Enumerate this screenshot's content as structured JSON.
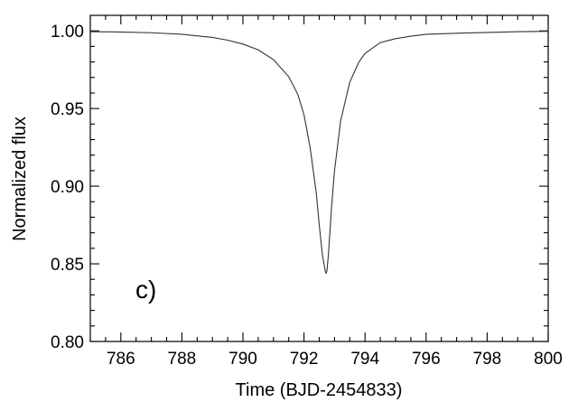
{
  "chart_data": {
    "type": "line",
    "panel_label": "c)",
    "xlabel": "Time (BJD-2454833)",
    "ylabel": "Normalized flux",
    "xlim": [
      785,
      800
    ],
    "ylim": [
      0.8,
      1.01
    ],
    "x_ticks": [
      786,
      788,
      790,
      792,
      794,
      796,
      798,
      800
    ],
    "x_tick_labels": [
      "786",
      "788",
      "790",
      "792",
      "794",
      "796",
      "798",
      "800"
    ],
    "y_ticks": [
      0.8,
      0.85,
      0.9,
      0.95,
      1.0
    ],
    "y_tick_labels": [
      "0.80",
      "0.85",
      "0.90",
      "0.95",
      "1.00"
    ],
    "grid": false,
    "line_color": "#333333",
    "series": [
      {
        "x": [
          785.0,
          786.0,
          787.0,
          788.0,
          789.0,
          789.5,
          790.0,
          790.5,
          791.0,
          791.5,
          791.8,
          792.0,
          792.2,
          792.4,
          792.5,
          792.6,
          792.7,
          792.72,
          792.75,
          792.8,
          792.9,
          793.0,
          793.2,
          793.5,
          793.8,
          794.0,
          794.5,
          795.0,
          795.5,
          796.0,
          797.0,
          798.0,
          799.0,
          800.0
        ],
        "y": [
          0.9995,
          0.9993,
          0.9988,
          0.9978,
          0.9958,
          0.994,
          0.9915,
          0.9878,
          0.9815,
          0.9705,
          0.959,
          0.946,
          0.925,
          0.896,
          0.875,
          0.856,
          0.845,
          0.844,
          0.845,
          0.856,
          0.886,
          0.91,
          0.942,
          0.967,
          0.98,
          0.9855,
          0.9925,
          0.995,
          0.9966,
          0.9978,
          0.9985,
          0.999,
          0.9995,
          0.9997
        ]
      }
    ]
  }
}
